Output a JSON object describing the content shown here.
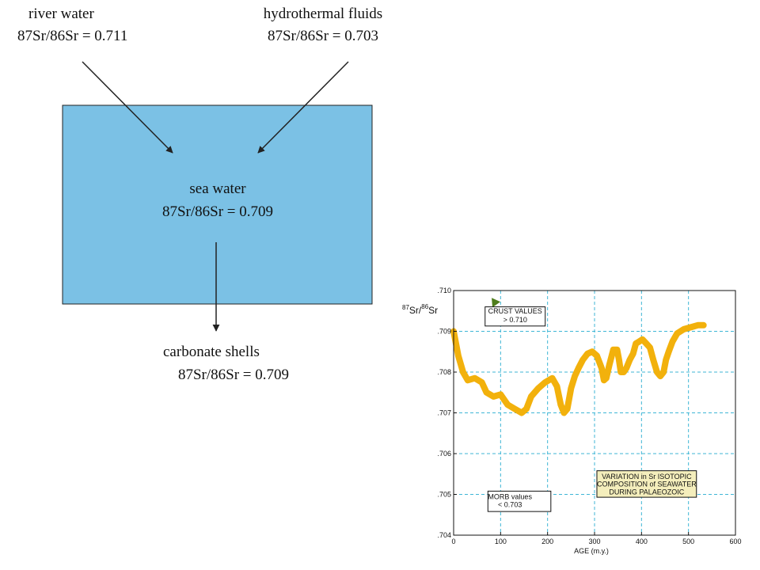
{
  "diagram": {
    "river": {
      "name": "river water",
      "ratio": "87Sr/86Sr = 0.711"
    },
    "hydro": {
      "name": "hydrothermal fluids",
      "ratio": "87Sr/86Sr = 0.703"
    },
    "sea": {
      "name": "sea water",
      "ratio": "87Sr/86Sr = 0.709"
    },
    "shells": {
      "name": "carbonate shells",
      "ratio": "87Sr/86Sr = 0.709"
    },
    "colors": {
      "sea_fill": "#7bc1e5",
      "arrow": "#222222"
    }
  },
  "chart_data": {
    "type": "line",
    "xlabel": "AGE (m.y.)",
    "ylabel": "87Sr/86Sr",
    "ylabel_parts": {
      "sup1": "87",
      "base1": "Sr/",
      "sup2": "86",
      "base2": "Sr"
    },
    "xlim": [
      0,
      600
    ],
    "ylim": [
      0.704,
      0.71
    ],
    "x_ticks": [
      "0",
      "100",
      "200",
      "300",
      "400",
      "500",
      "600"
    ],
    "y_ticks": [
      ".704",
      ".705",
      ".706",
      ".707",
      ".708",
      ".709",
      ".710"
    ],
    "grid": true,
    "line_color": "#f2b10c",
    "grid_color": "#3fb6d6",
    "series": [
      {
        "x": [
          0,
          10,
          20,
          30,
          45,
          60,
          70,
          85,
          100,
          115,
          130,
          145,
          155,
          165,
          180,
          195,
          210,
          220,
          228,
          235,
          242,
          250,
          258,
          266,
          275,
          285,
          295,
          305,
          315,
          320,
          325,
          332,
          340,
          348,
          352,
          356,
          362,
          368,
          375,
          382,
          388,
          395,
          402,
          410,
          418,
          425,
          433,
          440,
          447,
          452,
          458,
          466,
          476,
          490,
          505,
          520,
          532
        ],
        "y": [
          0.709,
          0.7084,
          0.708,
          0.7078,
          0.70785,
          0.70775,
          0.7075,
          0.7074,
          0.70745,
          0.7072,
          0.7071,
          0.707,
          0.7071,
          0.7074,
          0.7076,
          0.70775,
          0.70785,
          0.70765,
          0.7072,
          0.707,
          0.7071,
          0.7076,
          0.7079,
          0.7081,
          0.7083,
          0.70845,
          0.7085,
          0.7084,
          0.7081,
          0.7078,
          0.70785,
          0.7082,
          0.70855,
          0.70855,
          0.7083,
          0.708,
          0.708,
          0.7081,
          0.7083,
          0.70845,
          0.7087,
          0.70875,
          0.7088,
          0.7087,
          0.7086,
          0.7083,
          0.708,
          0.7079,
          0.708,
          0.7083,
          0.7085,
          0.70875,
          0.70895,
          0.70905,
          0.7091,
          0.70915,
          0.70915
        ]
      }
    ],
    "annotations": {
      "crust": {
        "line1": "CRUST VALUES",
        "line2": "> 0.710"
      },
      "morb": {
        "line1": "MORB values",
        "line2": "< 0.703"
      },
      "variation": {
        "line1": "VARIATION in Sr ISOTOPIC",
        "line2": "COMPOSITION of SEAWATER",
        "line3": "DURING PALAEOZOIC"
      },
      "crust_arrow_color": "#4f7d1c",
      "variation_fill": "#f4eebc"
    }
  }
}
